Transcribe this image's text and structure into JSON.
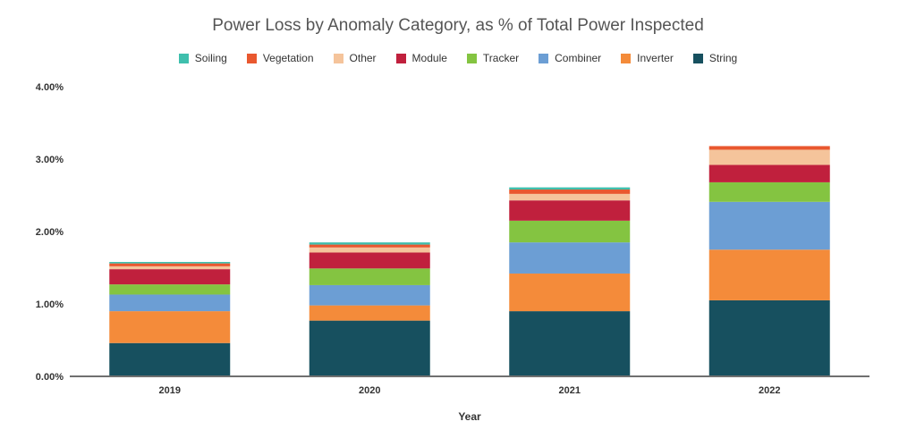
{
  "chart_data": {
    "type": "bar",
    "stacked": true,
    "title": "Power Loss by Anomaly Category, as % of Total Power Inspected",
    "xlabel": "Year",
    "ylabel": "",
    "categories": [
      "2019",
      "2020",
      "2021",
      "2022"
    ],
    "ylim": [
      0,
      4
    ],
    "yticks": [
      0,
      1,
      2,
      3,
      4
    ],
    "ytick_labels": [
      "0.00%",
      "1.00%",
      "2.00%",
      "3.00%",
      "4.00%"
    ],
    "grid": false,
    "legend_position": "top",
    "series": [
      {
        "name": "String",
        "color": "#17505f",
        "values": [
          0.46,
          0.77,
          0.9,
          1.05
        ]
      },
      {
        "name": "Inverter",
        "color": "#f48b3a",
        "values": [
          0.44,
          0.21,
          0.52,
          0.7
        ]
      },
      {
        "name": "Combiner",
        "color": "#6c9ed4",
        "values": [
          0.23,
          0.28,
          0.43,
          0.66
        ]
      },
      {
        "name": "Tracker",
        "color": "#84c441",
        "values": [
          0.14,
          0.23,
          0.3,
          0.27
        ]
      },
      {
        "name": "Module",
        "color": "#c0203d",
        "values": [
          0.21,
          0.22,
          0.28,
          0.24
        ]
      },
      {
        "name": "Other",
        "color": "#f5c49b",
        "values": [
          0.04,
          0.07,
          0.09,
          0.21
        ]
      },
      {
        "name": "Vegetation",
        "color": "#e9582f",
        "values": [
          0.04,
          0.04,
          0.06,
          0.05
        ]
      },
      {
        "name": "Soiling",
        "color": "#3fbfad",
        "values": [
          0.02,
          0.03,
          0.03,
          0.0
        ]
      }
    ],
    "legend_order": [
      "Soiling",
      "Vegetation",
      "Other",
      "Module",
      "Tracker",
      "Combiner",
      "Inverter",
      "String"
    ]
  }
}
